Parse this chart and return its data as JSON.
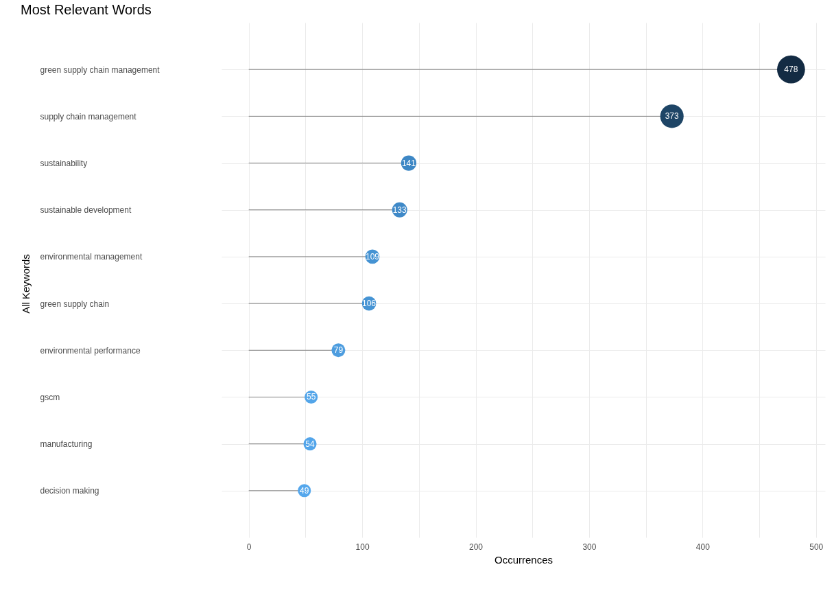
{
  "chart_data": {
    "type": "lollipop",
    "title": "Most Relevant Words",
    "xlabel": "Occurrences",
    "ylabel": "All Keywords",
    "orientation": "horizontal",
    "categories": [
      "green supply chain management",
      "supply chain management",
      "sustainability",
      "sustainable development",
      "environmental management",
      "green supply chain",
      "environmental performance",
      "gscm",
      "manufacturing",
      "decision making"
    ],
    "values": [
      478,
      373,
      141,
      133,
      109,
      106,
      79,
      55,
      54,
      49
    ],
    "sizes": [
      1,
      0.7,
      0.3,
      0.29,
      0.26,
      0.26,
      0.24,
      0.22,
      0.22,
      0.22
    ],
    "colors": [
      "#132b43",
      "#1e4566",
      "#3d87c5",
      "#3f89c8",
      "#4593d3",
      "#4694d4",
      "#4d9ddf",
      "#53a5e9",
      "#53a5ea",
      "#55a7ec"
    ],
    "xlim": [
      -24,
      508
    ],
    "xticks": [
      0,
      {
        "value": 50,
        "label": null
      },
      100,
      {
        "value": 150,
        "label": null
      },
      200,
      {
        "value": 250,
        "label": null
      },
      300,
      {
        "value": 350,
        "label": null
      },
      400,
      {
        "value": 450,
        "label": null
      },
      500
    ],
    "grid": true,
    "data_labels": true
  }
}
